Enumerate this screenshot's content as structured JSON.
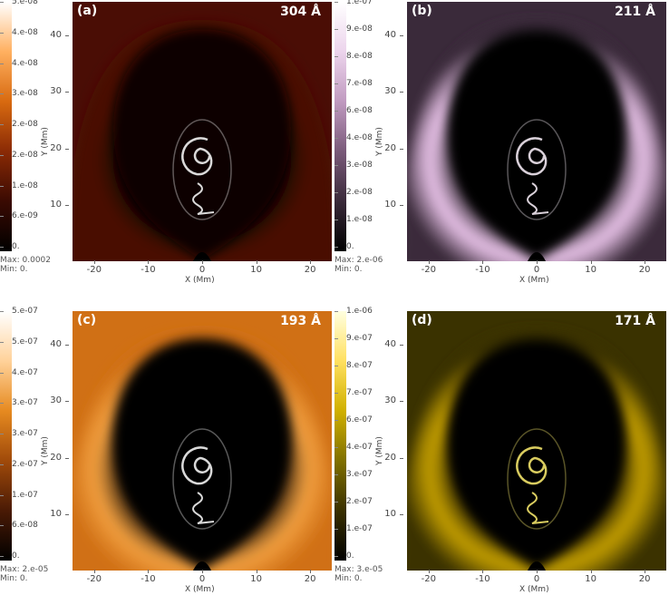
{
  "panels": [
    {
      "label": "(a)",
      "wavelength": "304 Å",
      "colorbar_ticks": [
        "5.e-08",
        "4.e-08",
        "4.e-08",
        "3.e-08",
        "2.e-08",
        "2.e-08",
        "1.e-08",
        "6.e-09",
        "0."
      ],
      "max": "Max: 0.0002",
      "min": "Min: 0.",
      "colormap": [
        "#000000",
        "#3a0a02",
        "#8a2a05",
        "#d86a10",
        "#ffb060",
        "#ffffff"
      ],
      "background": "#4a0d05",
      "dark": "#080100",
      "halo": "#4a0d05",
      "bright": "#ffffff"
    },
    {
      "label": "(b)",
      "wavelength": "211 Å",
      "colorbar_ticks": [
        "1.e-07",
        "9.e-08",
        "8.e-08",
        "7.e-08",
        "6.e-08",
        "4.e-08",
        "3.e-08",
        "2.e-08",
        "1.e-08",
        "0."
      ],
      "max": "Max: 2.e-06",
      "min": "Min: 0.",
      "colormap": [
        "#000000",
        "#3a2a3a",
        "#7a5a7a",
        "#c09ac0",
        "#ecd4ec",
        "#ffffff"
      ],
      "background": "#3a2a3a",
      "dark": "#050305",
      "halo": "#efc8ef",
      "bright": "#fff5ff"
    },
    {
      "label": "(c)",
      "wavelength": "193 Å",
      "colorbar_ticks": [
        "5.e-07",
        "5.e-07",
        "4.e-07",
        "3.e-07",
        "3.e-07",
        "2.e-07",
        "1.e-07",
        "6.e-08",
        "0."
      ],
      "max": "Max: 2.e-05",
      "min": "Min: 0.",
      "colormap": [
        "#000000",
        "#4a1a05",
        "#a04a0a",
        "#e68a20",
        "#ffd29a",
        "#ffffff"
      ],
      "background": "#d07015",
      "dark": "#050100",
      "halo": "#f2a040",
      "bright": "#ffffff"
    },
    {
      "label": "(d)",
      "wavelength": "171 Å",
      "colorbar_ticks": [
        "1.e-06",
        "9.e-07",
        "8.e-07",
        "7.e-07",
        "6.e-07",
        "4.e-07",
        "3.e-07",
        "2.e-07",
        "1.e-07",
        "0."
      ],
      "max": "Max: 3.e-05",
      "min": "Min: 0.",
      "colormap": [
        "#000000",
        "#3a3000",
        "#807000",
        "#d0b000",
        "#ffe060",
        "#ffffe0"
      ],
      "background": "#3a3200",
      "dark": "#020200",
      "halo": "#c8a200",
      "bright": "#fff070"
    }
  ],
  "y_axis": {
    "label": "Y (Mm)",
    "ticks": [
      "40",
      "30",
      "20",
      "10"
    ],
    "range": [
      0,
      46
    ]
  },
  "x_axis": {
    "label": "X (Mm)",
    "ticks": [
      "-20",
      "-10",
      "0",
      "10",
      "20"
    ],
    "range": [
      -24,
      24
    ]
  }
}
